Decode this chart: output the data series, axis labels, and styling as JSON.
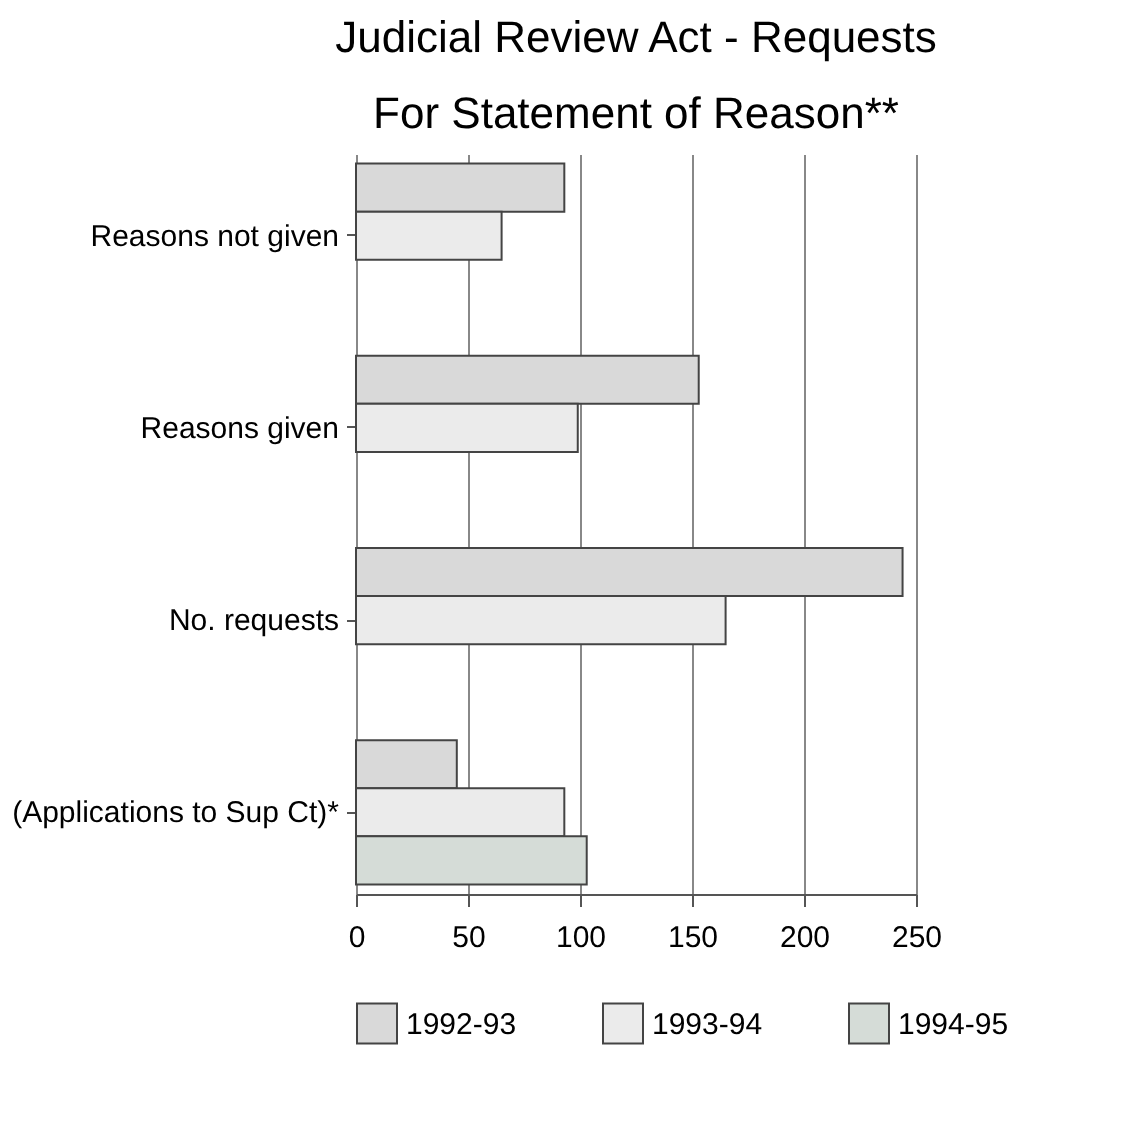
{
  "chart_data": {
    "type": "bar",
    "orientation": "horizontal",
    "title": "Judicial Review Act - Requests For Statement of Reason**",
    "categories": [
      "Reasons not given",
      "Reasons given",
      "No. requests",
      "(Applications to Sup Ct)*"
    ],
    "series": [
      {
        "name": "1992-93",
        "color": "#d9d9d9",
        "values": [
          93,
          153,
          244,
          45
        ]
      },
      {
        "name": "1993-94",
        "color": "#ebebeb",
        "values": [
          65,
          99,
          165,
          93
        ]
      },
      {
        "name": "1994-95",
        "color": "#d5dcd7",
        "values": [
          null,
          null,
          null,
          103
        ]
      }
    ],
    "xlim": [
      0,
      250
    ],
    "xticks": [
      0,
      50,
      100,
      150,
      200,
      250
    ],
    "grid": "x",
    "legend": "bottom"
  }
}
